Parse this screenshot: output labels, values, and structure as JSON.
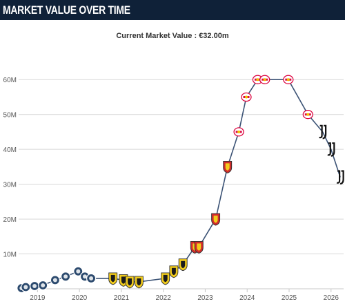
{
  "header": {
    "title": "MARKET VALUE OVER TIME"
  },
  "subtitle": {
    "label": "Current Market Value : ",
    "value": "€32.00m"
  },
  "colors": {
    "header_bg": "#0f2138",
    "line": "#3b5275",
    "grid": "#d7d7d7",
    "axis_text": "#555555",
    "club_belgium": "#2c4a6e",
    "club_france": "#f2cc1c",
    "club_france_alt": "#d22b2b",
    "club_germany": "#dd0741",
    "club_italy": "#111111"
  },
  "chart_data": {
    "type": "line",
    "title": "Current Market Value : €32.00m",
    "xlabel": "",
    "ylabel": "",
    "xlim": [
      2018.55,
      2026.3
    ],
    "ylim": [
      0,
      65
    ],
    "y_ticks": [
      10,
      20,
      30,
      40,
      50,
      60
    ],
    "y_tick_labels": [
      "10M",
      "20M",
      "30M",
      "40M",
      "50M",
      "60M"
    ],
    "x_ticks": [
      2019,
      2020,
      2021,
      2022,
      2023,
      2024,
      2025,
      2026
    ],
    "x_tick_labels": [
      "2019",
      "2020",
      "2021",
      "2022",
      "2023",
      "2024",
      "2025",
      "2026"
    ],
    "grid": true,
    "legend": "none",
    "series": [
      {
        "points": [
          {
            "x": 2018.62,
            "y": 0.2,
            "club": "belgium"
          },
          {
            "x": 2018.72,
            "y": 0.5,
            "club": "belgium"
          },
          {
            "x": 2018.93,
            "y": 0.8,
            "club": "belgium"
          },
          {
            "x": 2019.13,
            "y": 1.0,
            "club": "belgium"
          },
          {
            "x": 2019.42,
            "y": 2.5,
            "club": "belgium"
          },
          {
            "x": 2019.67,
            "y": 3.5,
            "club": "belgium"
          },
          {
            "x": 2019.97,
            "y": 5.0,
            "club": "belgium"
          },
          {
            "x": 2020.13,
            "y": 3.5,
            "club": "belgium"
          },
          {
            "x": 2020.28,
            "y": 3.0,
            "club": "belgium"
          },
          {
            "x": 2020.8,
            "y": 3.0,
            "club": "france"
          },
          {
            "x": 2021.05,
            "y": 2.5,
            "club": "france"
          },
          {
            "x": 2021.2,
            "y": 2.0,
            "club": "france"
          },
          {
            "x": 2021.42,
            "y": 2.0,
            "club": "france"
          },
          {
            "x": 2022.05,
            "y": 3.0,
            "club": "france"
          },
          {
            "x": 2022.25,
            "y": 5.0,
            "club": "france"
          },
          {
            "x": 2022.47,
            "y": 7.0,
            "club": "france"
          },
          {
            "x": 2022.75,
            "y": 12.0,
            "club": "france_alt"
          },
          {
            "x": 2022.85,
            "y": 12.0,
            "club": "france_alt"
          },
          {
            "x": 2023.25,
            "y": 20.0,
            "club": "france_alt"
          },
          {
            "x": 2023.53,
            "y": 35.0,
            "club": "france_alt"
          },
          {
            "x": 2023.8,
            "y": 45.0,
            "club": "germany"
          },
          {
            "x": 2023.98,
            "y": 55.0,
            "club": "germany"
          },
          {
            "x": 2024.25,
            "y": 60.0,
            "club": "germany"
          },
          {
            "x": 2024.42,
            "y": 60.0,
            "club": "germany"
          },
          {
            "x": 2024.98,
            "y": 60.0,
            "club": "germany"
          },
          {
            "x": 2025.45,
            "y": 50.0,
            "club": "germany"
          },
          {
            "x": 2025.8,
            "y": 45.0,
            "club": "italy"
          },
          {
            "x": 2026.0,
            "y": 40.0,
            "club": "italy"
          },
          {
            "x": 2026.22,
            "y": 32.0,
            "club": "italy"
          }
        ]
      }
    ]
  }
}
